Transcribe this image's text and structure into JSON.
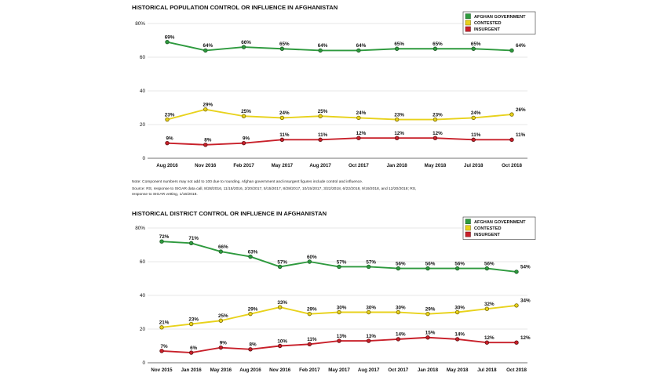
{
  "chart_data": [
    {
      "type": "line",
      "title": "HISTORICAL POPULATION CONTROL OR INFLUENCE IN AFGHANISTAN",
      "x": [
        "Aug 2016",
        "Nov 2016",
        "Feb 2017",
        "May 2017",
        "Aug 2017",
        "Oct 2017",
        "Jan 2018",
        "May 2018",
        "Jul 2018",
        "Oct 2018"
      ],
      "yticks": [
        "80%",
        "60",
        "40",
        "20",
        "0"
      ],
      "ylim": [
        0,
        80
      ],
      "legend_position": "top-right",
      "series": [
        {
          "name": "AFGHAN GOVERNMENT",
          "color": "#2e9a3e",
          "values": [
            69,
            64,
            66,
            65,
            64,
            64,
            65,
            65,
            65,
            64
          ],
          "labels": [
            "69%",
            "64%",
            "66%",
            "65%",
            "64%",
            "64%",
            "65%",
            "65%",
            "65%",
            "64%"
          ]
        },
        {
          "name": "CONTESTED",
          "color": "#e8d21c",
          "values": [
            23,
            29,
            25,
            24,
            25,
            24,
            23,
            23,
            24,
            26
          ],
          "labels": [
            "23%",
            "29%",
            "25%",
            "24%",
            "25%",
            "24%",
            "23%",
            "23%",
            "24%",
            "26%"
          ]
        },
        {
          "name": "INSURGENT",
          "color": "#c8202a",
          "values": [
            9,
            8,
            9,
            11,
            11,
            12,
            12,
            12,
            11,
            11
          ],
          "labels": [
            "9%",
            "8%",
            "9%",
            "11%",
            "11%",
            "12%",
            "12%",
            "12%",
            "11%",
            "11%"
          ]
        }
      ]
    },
    {
      "type": "line",
      "title": "HISTORICAL DISTRICT CONTROL OR INFLUENCE IN AFGHANISTAN",
      "x": [
        "Nov 2015",
        "Jan 2016",
        "May 2016",
        "Aug 2016",
        "Nov 2016",
        "Feb 2017",
        "May 2017",
        "Aug 2017",
        "Oct 2017",
        "Jan 2018",
        "May 2018",
        "Jul 2018",
        "Oct 2018"
      ],
      "yticks": [
        "80%",
        "60",
        "40",
        "20",
        "0"
      ],
      "ylim": [
        0,
        80
      ],
      "legend_position": "top-right",
      "series": [
        {
          "name": "AFGHAN GOVERNMENT",
          "color": "#2e9a3e",
          "values": [
            72,
            71,
            66,
            63,
            57,
            60,
            57,
            57,
            56,
            56,
            56,
            56,
            54
          ],
          "labels": [
            "72%",
            "71%",
            "66%",
            "63%",
            "57%",
            "60%",
            "57%",
            "57%",
            "56%",
            "56%",
            "56%",
            "56%",
            "54%"
          ]
        },
        {
          "name": "CONTESTED",
          "color": "#e8d21c",
          "values": [
            21,
            23,
            25,
            29,
            33,
            29,
            30,
            30,
            30,
            29,
            30,
            32,
            34
          ],
          "labels": [
            "21%",
            "23%",
            "25%",
            "29%",
            "33%",
            "29%",
            "30%",
            "30%",
            "30%",
            "29%",
            "30%",
            "32%",
            "34%"
          ]
        },
        {
          "name": "INSURGENT",
          "color": "#c8202a",
          "values": [
            7,
            6,
            9,
            8,
            10,
            11,
            13,
            13,
            14,
            15,
            14,
            12,
            12
          ],
          "labels": [
            "7%",
            "6%",
            "9%",
            "8%",
            "10%",
            "11%",
            "13%",
            "13%",
            "14%",
            "15%",
            "14%",
            "12%",
            "12%"
          ]
        }
      ]
    }
  ],
  "notes": {
    "line1": "Note: Component numbers may not add to 100 due to rounding. Afghan government and insurgent figures include control and influence.",
    "line2": "Source: RS, response to SIGAR data call, 8/28/2016, 11/15/2016, 2/20/2017, 5/15/2017, 8/28/2017, 10/15/2017, 3/22/2018, 6/22/2018, 9/19/2018, and 12/20/2018; RS,",
    "line3": "response to SIGAR vetting, 1/16/2018."
  },
  "colors": {
    "green": "#2e9a3e",
    "yellow": "#e8d21c",
    "red": "#c8202a",
    "green_stroke": "#1c5a24",
    "yellow_stroke": "#7a6a00",
    "red_stroke": "#5e0f12"
  }
}
